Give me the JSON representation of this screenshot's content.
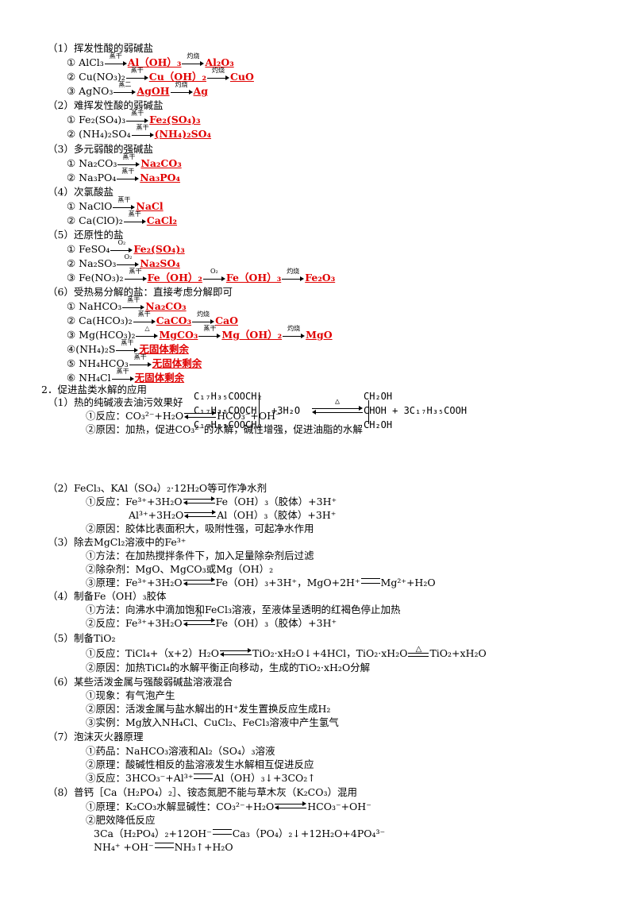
{
  "s1": {
    "title": "（1）挥发性酸的弱碱盐",
    "c_zg": "蒸干",
    "c_zs": "灼烧",
    "c_zj": "蒸二",
    "r1_a": "① AlCl₃",
    "r1_b": "Al（OH）₃",
    "r1_c": "Al₂O₃",
    "r2_a": "② Cu(NO₃)₂",
    "r2_b": "Cu（OH）₂",
    "r2_c": "CuO",
    "r3_a": "③ AgNO₃",
    "r3_b": "AgOH",
    "r3_c": "Ag"
  },
  "s2": {
    "title": "（2）难挥发性酸的弱碱盐",
    "r1_a": "① Fe₂(SO₄)₃",
    "r1_b": "Fe₂(SO₄)₃",
    "r2_a": "② (NH₄)₂SO₄",
    "r2_b": "(NH₄)₂SO₄"
  },
  "s3": {
    "title": "（3）多元弱酸的强碱盐",
    "r1_a": "① Na₂CO₃",
    "r1_b": "Na₂CO₃",
    "r2_a": "② Na₃PO₄",
    "r2_b": "Na₃PO₄"
  },
  "s4": {
    "title": "（4）次氯酸盐",
    "r1_a": "① NaClO",
    "r1_b": "NaCl",
    "r2_a": "② Ca(ClO)₂",
    "r2_b": "CaCl₂"
  },
  "s5": {
    "title": "（5）还原性的盐",
    "c_o2": "O₂",
    "r1_a": "① FeSO₄",
    "r1_b": "Fe₂(SO₄)₃",
    "r2_a": "② Na₂SO₃",
    "r2_b": "Na₂SO₄",
    "r3_a": "③ Fe(NO₃)₂",
    "r3_b": "Fe（OH）₂",
    "r3_c": "Fe（OH）₃",
    "r3_d": "Fe₂O₃"
  },
  "s6": {
    "title": "（6）受热易分解的盐：直接考虑分解即可",
    "c_delta": "△",
    "r1_a": "① NaHCO₃",
    "r1_b": "Na₂CO₃",
    "r2_a": "② Ca(HCO₃)₂",
    "r2_b": "CaCO₃",
    "r2_c": "CaO",
    "r3_a": "③ Mg(HCO₃)₂",
    "r3_b": "MgCO₃",
    "r3_c": "Mg（OH）₂",
    "r3_d": "MgO",
    "r4_a": "④(NH₄)₂S",
    "r5_a": "⑤ NH₄HCO₃",
    "r6_a": "⑥ NH₄Cl",
    "none": "无固体剩余"
  },
  "p2": {
    "title": "2．促进盐类水解的应用",
    "a_title": "（1）热的纯碱液去油污效果好",
    "a_r1_l": "①反应：CO₃²⁻+H₂O",
    "a_r1_r": "HCO₃⁻+OH⁻",
    "a_r2": "②原因：加热，促进CO₃²⁻的水解，碱性增强，促进油脂的水解",
    "ester_l1": "C₁₇H₃₅COOCH₂",
    "ester_l2": "C₁₇H₃₅COOCH",
    "ester_l3": "C₁₇H₃₅COOCH₂",
    "ester_water": "+3H₂O",
    "ester_r1": "CH₂OH",
    "ester_r2": "CHOH + 3C₁₇H₃₅COOH",
    "ester_r3": "CH₂OH",
    "b_title": "（2）FeCl₃、KAl（SO₄）₂·12H₂O等可作净水剂",
    "b_r1_l": "①反应：Fe³⁺+3H₂O",
    "b_r1_r": "Fe（OH）₃（胶体）+3H⁺",
    "b_r2_l": "Al³⁺+3H₂O",
    "b_r2_r": "Al（OH）₃（胶体）+3H⁺",
    "b_r3": "②原因：胶体比表面积大，吸附性强，可起净水作用",
    "c_title": "（3）除去MgCl₂溶液中的Fe³⁺",
    "c_r1": "①方法：在加热搅拌条件下，加入足量除杂剂后过滤",
    "c_r2": "②除杂剂：MgO、MgCO₃或Mg（OH）₂",
    "c_r3_l": "③原理：Fe³⁺+3H₂O",
    "c_r3_m": "Fe（OH）₃+3H⁺，MgO+2H⁺",
    "c_r3_r": "Mg²⁺+H₂O",
    "d_title": "（4）制备Fe（OH）₃胶体",
    "d_r1": "①方法：向沸水中滴加饱和FeCl₃溶液，至液体呈透明的红褐色停止加热",
    "d_r2_l": "②反应：Fe³⁺+3H₂O",
    "d_r2_r": "Fe（OH）₃（胶体）+3H⁺",
    "e_title": "（5）制备TiO₂",
    "e_r1_l": "①反应：TiCl₄+（x+2）H₂O",
    "e_r1_m": "TiO₂·xH₂O↓+4HCl，TiO₂·xH₂O",
    "e_r1_r": "TiO₂+xH₂O",
    "e_r2": "②原因：加热TiCl₄的水解平衡正向移动，生成的TiO₂·xH₂O分解",
    "f_title": "（6）某些活泼金属与强酸弱碱盐溶液混合",
    "f_r1": "①现象：有气泡产生",
    "f_r2": "②原因：活泼金属与盐水解出的H⁺发生置换反应生成H₂",
    "f_r3": "③实例：Mg放入NH₄Cl、CuCl₂、FeCl₃溶液中产生氢气",
    "g_title": "（7）泡沫灭火器原理",
    "g_r1": "①药品：NaHCO₃溶液和Al₂（SO₄）₃溶液",
    "g_r2": "②原理：酸碱性相反的盐溶液发生水解相互促进反应",
    "g_r3_l": "③反应：3HCO₃⁻+Al³⁺",
    "g_r3_r": "Al（OH）₃↓+3CO₂↑",
    "h_title": "（8）普钙［Ca（H₂PO₄）₂］、铵态氮肥不能与草木灰（K₂CO₃）混用",
    "h_r1_l": "①原理：K₂CO₃水解显碱性：CO₃²⁻+H₂O",
    "h_r1_r": "HCO₃⁻+OH⁻",
    "h_r2": "②肥效降低反应",
    "h_r3_l": "3Ca（H₂PO₄）₂+12OH⁻",
    "h_r3_r": "Ca₃（PO₄）₂↓+12H₂O+4PO₄³⁻",
    "h_r4_l": "NH₄⁺ +OH⁻",
    "h_r4_r": "NH₃↑+H₂O"
  }
}
